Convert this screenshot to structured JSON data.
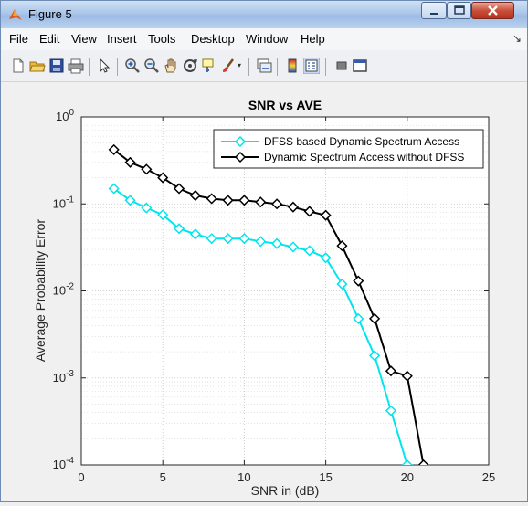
{
  "window": {
    "title": "Figure 5"
  },
  "menu": [
    "File",
    "Edit",
    "View",
    "Insert",
    "Tools",
    "Desktop",
    "Window",
    "Help"
  ],
  "toolbar_icons": [
    "new-figure-icon",
    "open-file-icon",
    "save-icon",
    "print-icon",
    "edit-plot-icon",
    "zoom-in-icon",
    "zoom-out-icon",
    "pan-icon",
    "rotate-3d-icon",
    "data-cursor-icon",
    "brush-icon",
    "link-plot-icon",
    "colorbar-icon",
    "legend-icon",
    "hide-plot-tools-icon",
    "show-plot-tools-icon"
  ],
  "chart_data": {
    "type": "line",
    "title": "SNR vs AVE",
    "xlabel": "SNR in (dB)",
    "ylabel": "Average Probability Error",
    "xlim": [
      0,
      25
    ],
    "ylim": [
      0.0001,
      1
    ],
    "yscale": "log",
    "grid": true,
    "legend_position": "top-right",
    "x_ticks": [
      0,
      5,
      10,
      15,
      20,
      25
    ],
    "y_tick_labels": [
      {
        "value": 1,
        "mantissa": "10",
        "exp": "0"
      },
      {
        "value": 0.1,
        "mantissa": "10",
        "exp": "-1"
      },
      {
        "value": 0.01,
        "mantissa": "10",
        "exp": "-2"
      },
      {
        "value": 0.001,
        "mantissa": "10",
        "exp": "-3"
      },
      {
        "value": 0.0001,
        "mantissa": "10",
        "exp": "-4"
      }
    ],
    "series": [
      {
        "name": "DFSS based Dynamic Spectrum Access",
        "color": "#00e5ee",
        "marker": "diamond",
        "x": [
          2,
          3,
          4,
          5,
          6,
          7,
          8,
          9,
          10,
          11,
          12,
          13,
          14,
          15,
          16,
          17,
          18,
          19,
          20
        ],
        "y": [
          0.15,
          0.11,
          0.09,
          0.075,
          0.052,
          0.045,
          0.04,
          0.04,
          0.04,
          0.037,
          0.035,
          0.032,
          0.029,
          0.024,
          0.012,
          0.0048,
          0.0018,
          0.00042,
          0.0001
        ]
      },
      {
        "name": "Dynamic Spectrum Access without DFSS",
        "color": "#000000",
        "marker": "diamond",
        "x": [
          2,
          3,
          4,
          5,
          6,
          7,
          8,
          9,
          10,
          11,
          12,
          13,
          14,
          15,
          16,
          17,
          18,
          19,
          20,
          21
        ],
        "y": [
          0.42,
          0.3,
          0.25,
          0.2,
          0.15,
          0.125,
          0.115,
          0.11,
          0.11,
          0.105,
          0.1,
          0.092,
          0.082,
          0.074,
          0.033,
          0.013,
          0.0048,
          0.0012,
          0.00105,
          0.0001
        ]
      }
    ]
  }
}
